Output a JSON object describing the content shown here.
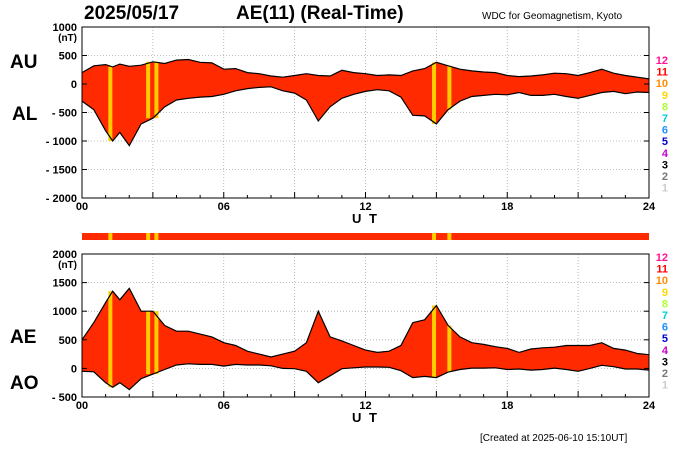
{
  "header": {
    "date": "2025/05/17",
    "title": "AE(11) (Real-Time)",
    "source": "WDC for Geomagnetism, Kyoto"
  },
  "footer": {
    "created": "[Created at 2025-06-10 15:10UT]"
  },
  "colors": {
    "fill": "#ff2a00",
    "highlight": "#ffcc00",
    "outline": "#000000",
    "grid": "#aaaaaa"
  },
  "color_scale": [
    {
      "label": "12",
      "color": "#ff1493"
    },
    {
      "label": "11",
      "color": "#ff0000"
    },
    {
      "label": "10",
      "color": "#ff8c00"
    },
    {
      "label": "9",
      "color": "#ffd700"
    },
    {
      "label": "8",
      "color": "#adff2f"
    },
    {
      "label": "7",
      "color": "#00ced1"
    },
    {
      "label": "6",
      "color": "#1e90ff"
    },
    {
      "label": "5",
      "color": "#0000cd"
    },
    {
      "label": "4",
      "color": "#cc00cc"
    },
    {
      "label": "3",
      "color": "#000000"
    },
    {
      "label": "2",
      "color": "#777777"
    },
    {
      "label": "1",
      "color": "#cccccc"
    }
  ],
  "chart_data": [
    {
      "type": "area",
      "panel": "AU/AL",
      "series_labels": [
        "AU",
        "AL"
      ],
      "ylabel": "(nT)",
      "xlabel": "U T",
      "xlim": [
        0,
        24
      ],
      "ylim": [
        -2000,
        1000
      ],
      "x_ticks": [
        "00",
        "06",
        "12",
        "18",
        "24"
      ],
      "y_ticks": [
        "1000",
        "500",
        "0",
        "- 500",
        "- 1000",
        "- 1500",
        "- 2000"
      ],
      "y_tick_values": [
        1000,
        500,
        0,
        -500,
        -1000,
        -1500,
        -2000
      ],
      "grid": true,
      "highlight_hours": [
        1.2,
        2.8,
        3.15,
        14.9,
        15.55
      ],
      "x": [
        0,
        0.5,
        1,
        1.3,
        1.6,
        2,
        2.5,
        3,
        3.5,
        4,
        4.5,
        5,
        5.5,
        6,
        6.5,
        7,
        7.5,
        8,
        8.5,
        9,
        9.5,
        10,
        10.5,
        11,
        11.5,
        12,
        12.5,
        13,
        13.5,
        14,
        14.5,
        15,
        15.5,
        16,
        16.5,
        17,
        17.5,
        18,
        18.5,
        19,
        19.5,
        20,
        20.5,
        21,
        21.5,
        22,
        22.5,
        23,
        23.5,
        24
      ],
      "series": [
        {
          "name": "AU",
          "values": [
            200,
            320,
            340,
            300,
            350,
            310,
            330,
            390,
            360,
            420,
            430,
            380,
            370,
            260,
            270,
            200,
            180,
            140,
            120,
            150,
            180,
            150,
            140,
            240,
            200,
            180,
            150,
            160,
            150,
            230,
            270,
            380,
            320,
            260,
            230,
            210,
            200,
            150,
            130,
            140,
            160,
            190,
            180,
            150,
            200,
            260,
            190,
            150,
            120,
            90
          ]
        },
        {
          "name": "AL",
          "values": [
            -300,
            -450,
            -820,
            -1000,
            -850,
            -1080,
            -700,
            -600,
            -400,
            -280,
            -250,
            -230,
            -220,
            -180,
            -120,
            -80,
            -60,
            -50,
            -120,
            -160,
            -280,
            -650,
            -400,
            -250,
            -180,
            -130,
            -100,
            -120,
            -230,
            -550,
            -560,
            -700,
            -450,
            -300,
            -220,
            -200,
            -180,
            -190,
            -150,
            -200,
            -200,
            -180,
            -220,
            -250,
            -200,
            -150,
            -130,
            -170,
            -140,
            -150
          ]
        }
      ]
    },
    {
      "type": "area",
      "panel": "AE/AO",
      "series_labels": [
        "AE",
        "AO"
      ],
      "ylabel": "(nT)",
      "xlabel": "U T",
      "xlim": [
        0,
        24
      ],
      "ylim": [
        -500,
        2000
      ],
      "x_ticks": [
        "00",
        "06",
        "12",
        "18",
        "24"
      ],
      "y_ticks": [
        "2000",
        "1500",
        "1000",
        "500",
        "0",
        "- 500"
      ],
      "y_tick_values": [
        2000,
        1500,
        1000,
        500,
        0,
        -500
      ],
      "grid": true,
      "highlight_hours": [
        1.2,
        2.8,
        3.15,
        14.9,
        15.55
      ],
      "x": [
        0,
        0.5,
        1,
        1.3,
        1.6,
        2,
        2.5,
        3,
        3.5,
        4,
        4.5,
        5,
        5.5,
        6,
        6.5,
        7,
        7.5,
        8,
        8.5,
        9,
        9.5,
        10,
        10.5,
        11,
        11.5,
        12,
        12.5,
        13,
        13.5,
        14,
        14.5,
        15,
        15.5,
        16,
        16.5,
        17,
        17.5,
        18,
        18.5,
        19,
        19.5,
        20,
        20.5,
        21,
        21.5,
        22,
        22.5,
        23,
        23.5,
        24
      ],
      "series": [
        {
          "name": "AE",
          "values": [
            500,
            800,
            1150,
            1350,
            1200,
            1400,
            1000,
            1000,
            750,
            650,
            650,
            600,
            550,
            450,
            400,
            300,
            250,
            200,
            250,
            300,
            450,
            1000,
            550,
            480,
            400,
            320,
            280,
            300,
            400,
            800,
            850,
            1100,
            750,
            550,
            450,
            420,
            380,
            350,
            280,
            340,
            360,
            370,
            400,
            400,
            400,
            450,
            350,
            320,
            260,
            240
          ]
        },
        {
          "name": "AO",
          "values": [
            -50,
            -60,
            -250,
            -330,
            -250,
            -370,
            -180,
            -100,
            -20,
            60,
            80,
            70,
            70,
            40,
            70,
            60,
            60,
            45,
            0,
            -5,
            -50,
            -250,
            -130,
            -5,
            10,
            25,
            25,
            20,
            -40,
            -160,
            -140,
            -160,
            -65,
            -20,
            5,
            5,
            10,
            -20,
            -10,
            -30,
            -20,
            5,
            -20,
            -50,
            0,
            55,
            30,
            -10,
            -10,
            -30
          ]
        }
      ]
    }
  ]
}
